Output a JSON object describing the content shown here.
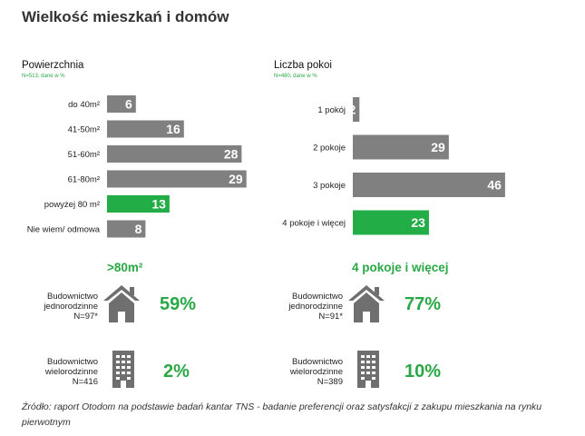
{
  "title": "Wielkość mieszkań i domów",
  "colors": {
    "bar": "#808080",
    "highlight": "#22ad46",
    "green_text": "#2aa845"
  },
  "chart_data": [
    {
      "type": "bar",
      "orientation": "horizontal",
      "title": "Powierzchnia",
      "subtitle": "N=513, dane w %",
      "categories": [
        "do 40m²",
        "41-50m²",
        "51-60m²",
        "61-80m²",
        "powyżej 80 m²",
        "Nie wiem/ odmowa"
      ],
      "values": [
        6,
        16,
        28,
        29,
        13,
        8
      ],
      "highlight_index": 4
    },
    {
      "type": "bar",
      "orientation": "horizontal",
      "title": "Liczba pokoi",
      "subtitle": "N=480, dane w %",
      "categories": [
        "1 pokój",
        "2 pokoje",
        "3 pokoje",
        "4 pokoje i więcej"
      ],
      "values": [
        2,
        29,
        46,
        23
      ],
      "highlight_index": 3
    }
  ],
  "segments": {
    "left": {
      "heading": ">80m²",
      "house": {
        "label_line1": "Budownictwo",
        "label_line2": "jednorodzinne",
        "label_line3": "N=97*",
        "value": "59%",
        "icon": "house-icon"
      },
      "block": {
        "label_line1": "Budownictwo",
        "label_line2": "wielorodzinne",
        "label_line3": "N=416",
        "value": "2%",
        "icon": "apartment-building-icon"
      }
    },
    "right": {
      "heading": "4 pokoje i więcej",
      "house": {
        "label_line1": "Budownictwo",
        "label_line2": "jednorodzinne",
        "label_line3": "N=91*",
        "value": "77%",
        "icon": "house-icon"
      },
      "block": {
        "label_line1": "Budownictwo",
        "label_line2": "wielorodzinne",
        "label_line3": "N=389",
        "value": "10%",
        "icon": "apartment-building-icon"
      }
    }
  },
  "source": "Źródło: raport Otodom na podstawie badań kantar TNS - badanie preferencji oraz satysfakcji z zakupu mieszkania na rynku pierwotnym"
}
